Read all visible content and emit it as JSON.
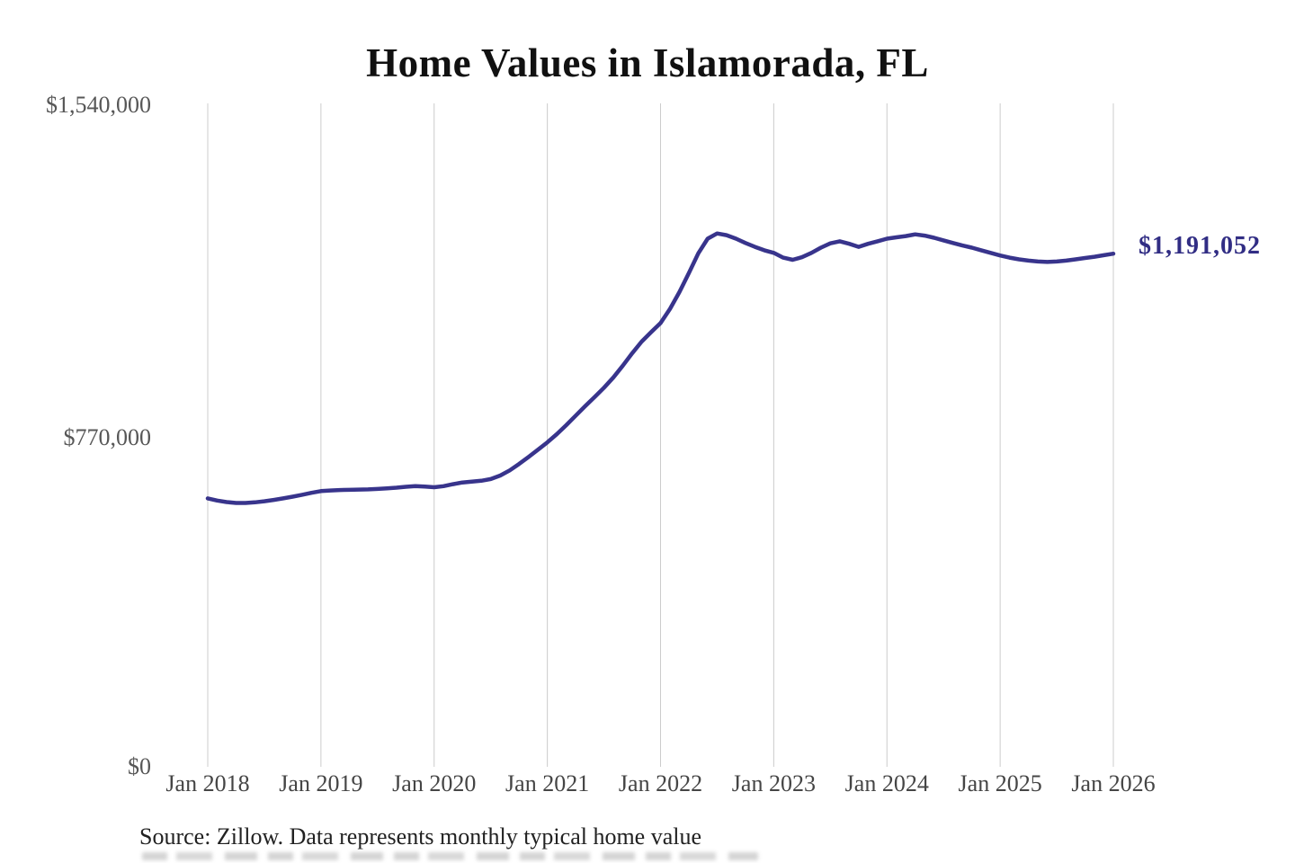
{
  "title": "Home Values in Islamorada, FL",
  "annotation": {
    "latest_value_label": "$1,191,052"
  },
  "source_note": "Source: Zillow. Data represents monthly typical home value",
  "colors": {
    "line": "#38348c",
    "annotation_text": "#312d84",
    "gridline": "#cccccc",
    "y_axis_text": "#575757",
    "x_axis_text": "#454545",
    "title_text": "#111111",
    "source_text": "#222222",
    "background": "#ffffff"
  },
  "chart_data": {
    "type": "line",
    "title": "Home Values in Islamorada, FL",
    "xlabel": "",
    "ylabel": "",
    "x_tick_labels": [
      "Jan 2018",
      "Jan 2019",
      "Jan 2020",
      "Jan 2021",
      "Jan 2022",
      "Jan 2023",
      "Jan 2024",
      "Jan 2025",
      "Jan 2026"
    ],
    "y_tick_labels": [
      "$0",
      "$770,000",
      "$1,540,000"
    ],
    "ylim": [
      0,
      1540000
    ],
    "y_tick_values": [
      0,
      770000,
      1540000
    ],
    "x_start": "2018-01",
    "x_end": "2026-01",
    "frequency": "monthly",
    "grid": "vertical-only",
    "legend": "none",
    "series": [
      {
        "name": "typical_home_value",
        "color": "#38348c",
        "values": [
          623000,
          618000,
          614500,
          612500,
          612500,
          614000,
          616500,
          619500,
          623000,
          627000,
          631500,
          636000,
          640000,
          641500,
          642500,
          643000,
          643500,
          644000,
          645000,
          646500,
          648000,
          650000,
          651500,
          650500,
          649000,
          651500,
          656000,
          660000,
          662000,
          664000,
          668000,
          676000,
          688000,
          703000,
          719000,
          736000,
          753000,
          772000,
          793000,
          815000,
          837000,
          858000,
          880000,
          904000,
          931000,
          960000,
          987000,
          1009000,
          1030000,
          1063000,
          1102000,
          1146000,
          1192000,
          1226000,
          1238000,
          1234000,
          1226000,
          1216000,
          1207000,
          1199000,
          1193000,
          1182000,
          1177000,
          1183000,
          1193000,
          1205000,
          1215000,
          1220000,
          1214000,
          1207000,
          1214000,
          1220000,
          1226000,
          1229000,
          1232000,
          1236000,
          1233000,
          1228000,
          1222000,
          1216000,
          1210000,
          1205000,
          1199000,
          1193000,
          1187000,
          1182000,
          1178000,
          1175000,
          1173000,
          1172000,
          1173000,
          1175000,
          1178000,
          1181000,
          1184000,
          1187500,
          1191052
        ]
      }
    ],
    "latest_point": {
      "x": "2026-01",
      "value": 1191052,
      "label": "$1,191,052"
    }
  }
}
